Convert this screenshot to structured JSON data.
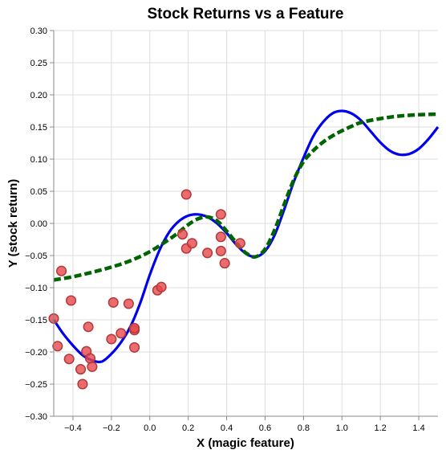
{
  "chart_data": {
    "type": "scatter",
    "title": "Stock Returns vs a Feature",
    "xlabel": "X (magic feature)",
    "ylabel": "Y (stock return)",
    "xlim": [
      -0.5,
      1.5
    ],
    "ylim": [
      -0.3,
      0.3
    ],
    "grid": true,
    "x_ticks": [
      -0.4,
      -0.2,
      0.0,
      0.2,
      0.4,
      0.6,
      0.8,
      1.0,
      1.2,
      1.4
    ],
    "x_tick_labels": [
      "−0.4",
      "−0.2",
      "0.0",
      "0.2",
      "0.4",
      "0.6",
      "0.8",
      "1.0",
      "1.2",
      "1.4"
    ],
    "y_ticks": [
      -0.3,
      -0.25,
      -0.2,
      -0.15,
      -0.1,
      -0.05,
      0.0,
      0.05,
      0.1,
      0.15,
      0.2,
      0.25,
      0.3
    ],
    "y_tick_labels": [
      "−0.30",
      "−0.25",
      "−0.20",
      "−0.15",
      "−0.10",
      "−0.05",
      "0.00",
      "0.05",
      "0.10",
      "0.15",
      "0.20",
      "0.25",
      "0.30"
    ],
    "colors": {
      "points": "#e8474b",
      "point_stroke": "#b03a3a",
      "blue_curve": "#0000ee",
      "green_curve": "#006400"
    },
    "series": [
      {
        "kind": "scatter",
        "points": [
          {
            "x": -0.5,
            "y": -0.148
          },
          {
            "x": -0.48,
            "y": -0.191
          },
          {
            "x": -0.46,
            "y": -0.074
          },
          {
            "x": -0.42,
            "y": -0.211
          },
          {
            "x": -0.41,
            "y": -0.12
          },
          {
            "x": -0.36,
            "y": -0.227
          },
          {
            "x": -0.35,
            "y": -0.25
          },
          {
            "x": -0.33,
            "y": -0.199
          },
          {
            "x": -0.32,
            "y": -0.161
          },
          {
            "x": -0.31,
            "y": -0.21
          },
          {
            "x": -0.3,
            "y": -0.223
          },
          {
            "x": -0.2,
            "y": -0.18
          },
          {
            "x": -0.19,
            "y": -0.123
          },
          {
            "x": -0.15,
            "y": -0.171
          },
          {
            "x": -0.11,
            "y": -0.125
          },
          {
            "x": -0.08,
            "y": -0.166
          },
          {
            "x": -0.08,
            "y": -0.163
          },
          {
            "x": -0.08,
            "y": -0.193
          },
          {
            "x": 0.04,
            "y": -0.104
          },
          {
            "x": 0.06,
            "y": -0.099
          },
          {
            "x": 0.17,
            "y": -0.017
          },
          {
            "x": 0.19,
            "y": -0.039
          },
          {
            "x": 0.19,
            "y": 0.045
          },
          {
            "x": 0.22,
            "y": -0.031
          },
          {
            "x": 0.3,
            "y": -0.046
          },
          {
            "x": 0.37,
            "y": 0.014
          },
          {
            "x": 0.37,
            "y": -0.021
          },
          {
            "x": 0.37,
            "y": -0.043
          },
          {
            "x": 0.39,
            "y": -0.062
          },
          {
            "x": 0.47,
            "y": -0.031
          }
        ]
      },
      {
        "kind": "line",
        "style": "solid",
        "x": [
          -0.5,
          -0.45,
          -0.4,
          -0.35,
          -0.3,
          -0.25,
          -0.2,
          -0.15,
          -0.1,
          -0.05,
          0.0,
          0.05,
          0.1,
          0.15,
          0.2,
          0.25,
          0.3,
          0.35,
          0.4,
          0.45,
          0.5,
          0.55,
          0.6,
          0.65,
          0.7,
          0.75,
          0.8,
          0.85,
          0.9,
          0.95,
          1.0,
          1.05,
          1.1,
          1.15,
          1.2,
          1.25,
          1.3,
          1.35,
          1.4,
          1.45,
          1.5
        ],
        "y": [
          -0.15,
          -0.172,
          -0.19,
          -0.205,
          -0.213,
          -0.215,
          -0.203,
          -0.185,
          -0.16,
          -0.124,
          -0.08,
          -0.042,
          -0.014,
          0.003,
          0.012,
          0.014,
          0.01,
          0.0,
          -0.015,
          -0.033,
          -0.047,
          -0.052,
          -0.043,
          -0.018,
          0.022,
          0.065,
          0.102,
          0.135,
          0.157,
          0.171,
          0.175,
          0.171,
          0.16,
          0.143,
          0.126,
          0.113,
          0.107,
          0.108,
          0.116,
          0.131,
          0.15
        ]
      },
      {
        "kind": "line",
        "style": "dashed",
        "x": [
          -0.5,
          -0.4,
          -0.3,
          -0.2,
          -0.1,
          0.0,
          0.1,
          0.15,
          0.2,
          0.25,
          0.3,
          0.35,
          0.4,
          0.45,
          0.5,
          0.55,
          0.6,
          0.65,
          0.7,
          0.75,
          0.8,
          0.85,
          0.9,
          0.95,
          1.0,
          1.05,
          1.1,
          1.2,
          1.3,
          1.4,
          1.5
        ],
        "y": [
          -0.088,
          -0.083,
          -0.076,
          -0.068,
          -0.058,
          -0.044,
          -0.025,
          -0.014,
          -0.002,
          0.007,
          0.01,
          0.004,
          -0.012,
          -0.03,
          -0.046,
          -0.052,
          -0.04,
          -0.01,
          0.03,
          0.068,
          0.096,
          0.113,
          0.126,
          0.136,
          0.144,
          0.151,
          0.157,
          0.163,
          0.167,
          0.169,
          0.17
        ]
      }
    ]
  }
}
